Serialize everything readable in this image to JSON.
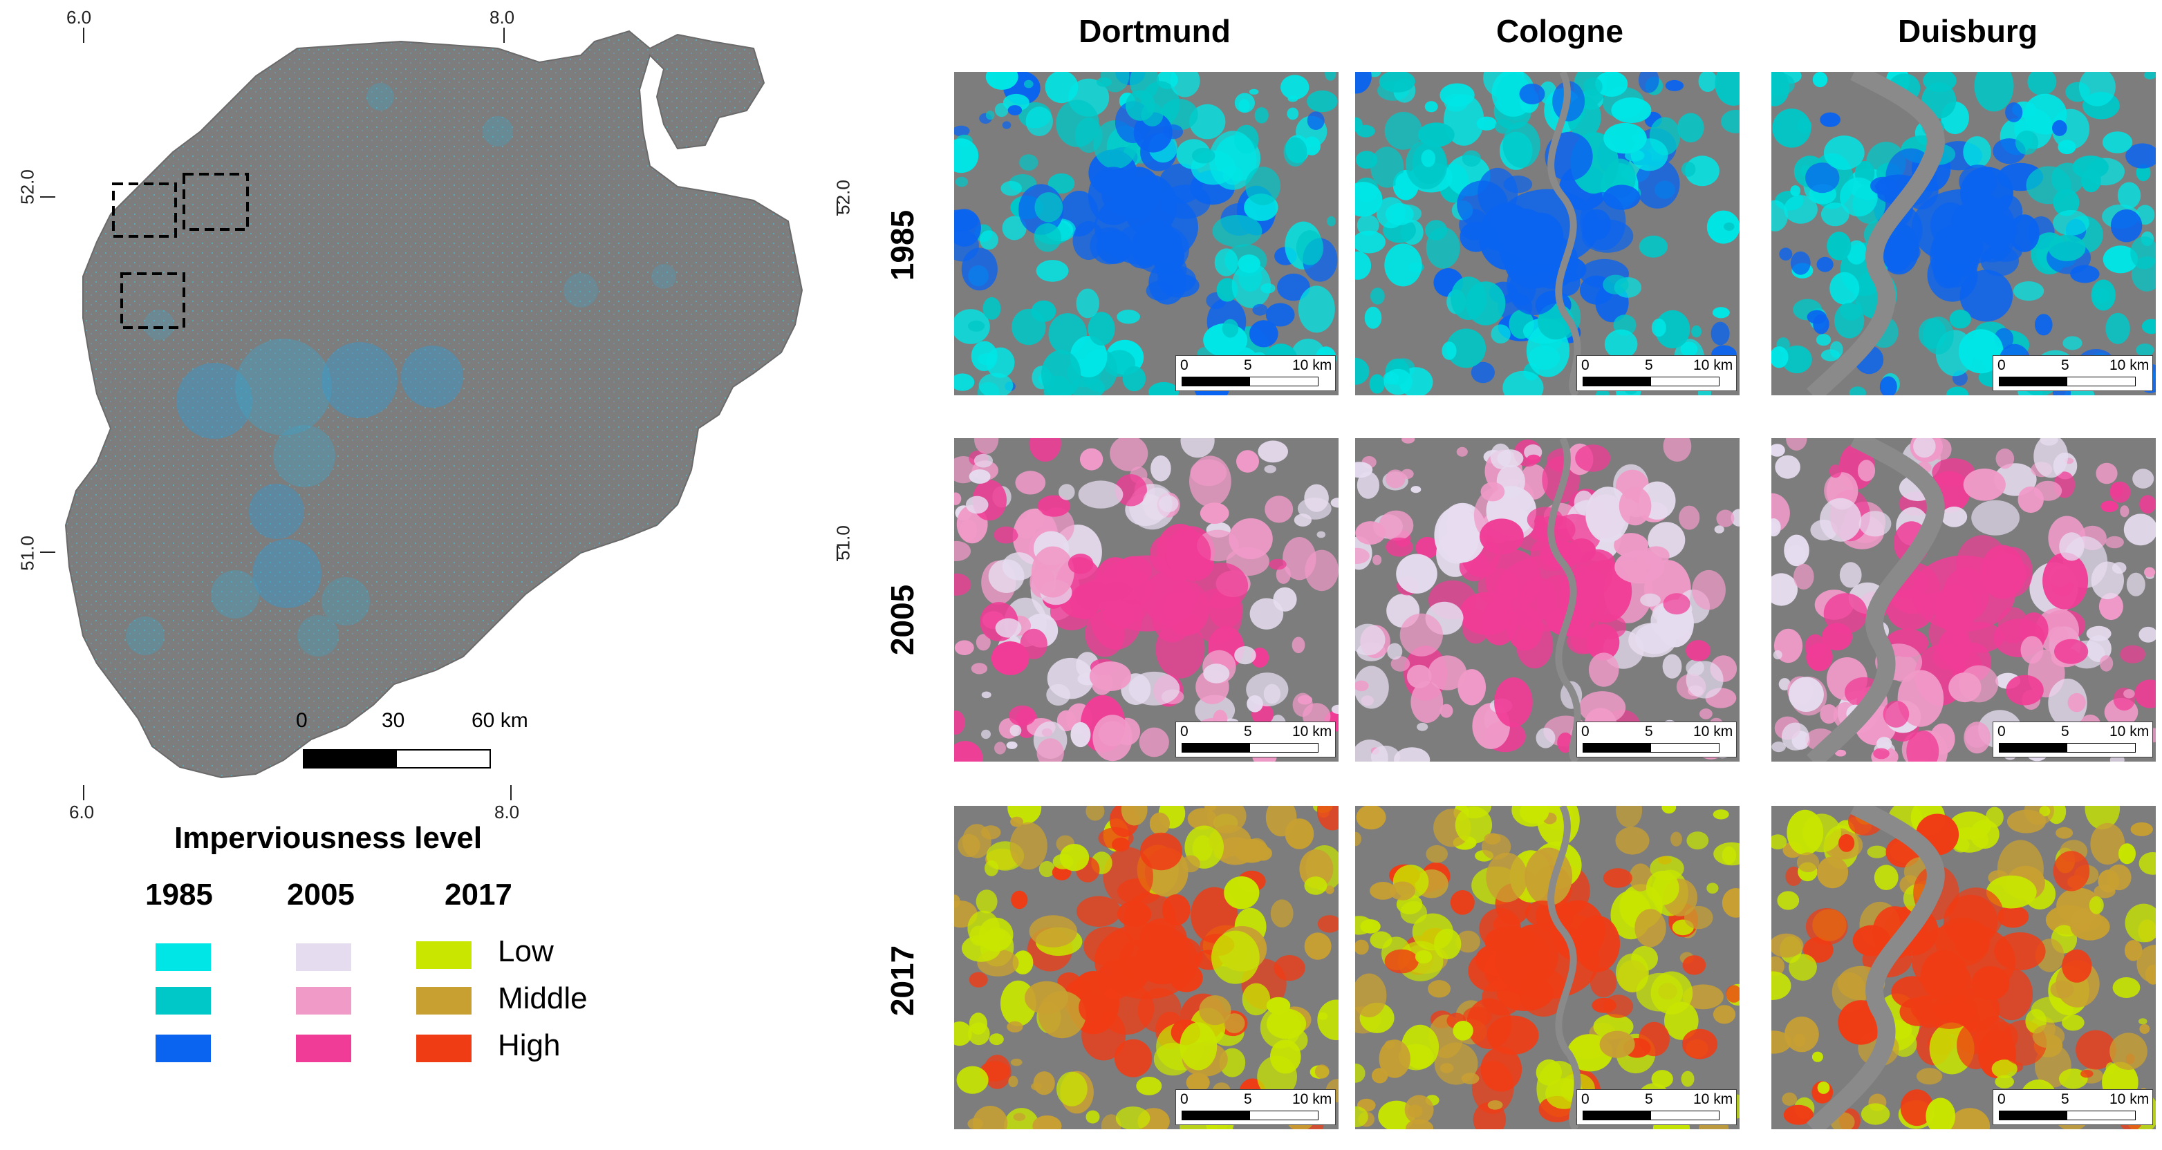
{
  "map": {
    "coords": {
      "lon_left": "6.0",
      "lon_right": "8.0",
      "lat_top": "52.0",
      "lat_bottom": "51.0"
    },
    "scale": {
      "zero": "0",
      "mid": "30",
      "end": "60 km"
    }
  },
  "panels": {
    "coords": {
      "lat_top": "52.0",
      "lat_bottom": "51.0"
    },
    "cities": [
      "Dortmund",
      "Cologne",
      "Duisburg"
    ],
    "years": [
      "1985",
      "2005",
      "2017"
    ],
    "scale": {
      "zero": "0",
      "mid": "5",
      "end": "10 km"
    }
  },
  "legend": {
    "title": "Imperviousness level",
    "years": [
      "1985",
      "2005",
      "2017"
    ],
    "classes": [
      "Low",
      "Middle",
      "High"
    ],
    "colors": {
      "y1985": [
        "#00e6e6",
        "#00c8c8",
        "#0a64f0"
      ],
      "y2005": [
        "#e6dcef",
        "#f09ac8",
        "#f03c96"
      ],
      "y2017": [
        "#c8e600",
        "#c8a032",
        "#f03c14"
      ]
    }
  }
}
